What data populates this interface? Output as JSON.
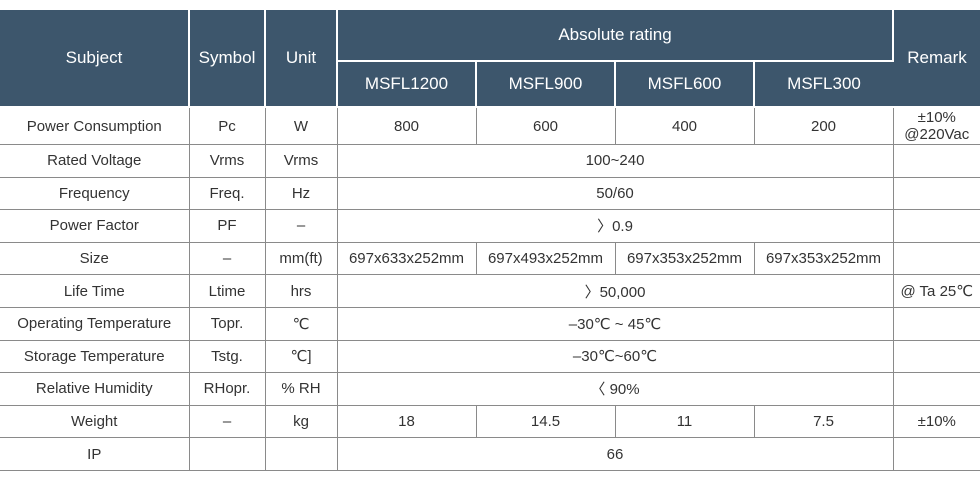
{
  "headers": {
    "subject": "Subject",
    "symbol": "Symbol",
    "unit": "Unit",
    "absolute_rating": "Absolute rating",
    "remark": "Remark",
    "models": [
      "MSFL1200",
      "MSFL900",
      "MSFL600",
      "MSFL300"
    ]
  },
  "rows": {
    "power_consumption": {
      "subject": "Power Consumption",
      "symbol": "Pc",
      "unit": "W",
      "values": [
        "800",
        "600",
        "400",
        "200"
      ],
      "remark_line1": "±10%",
      "remark_line2": "@220Vac"
    },
    "rated_voltage": {
      "subject": "Rated Voltage",
      "symbol": "Vrms",
      "unit": "Vrms",
      "value": "100~240",
      "remark": ""
    },
    "frequency": {
      "subject": "Frequency",
      "symbol": "Freq.",
      "unit": "Hz",
      "value": "50/60",
      "remark": ""
    },
    "power_factor": {
      "subject": "Power Factor",
      "symbol": "PF",
      "unit": "–",
      "value": "〉0.9",
      "remark": ""
    },
    "size": {
      "subject": "Size",
      "symbol": "–",
      "unit": "mm(ft)",
      "values": [
        "697x633x252mm",
        "697x493x252mm",
        "697x353x252mm",
        "697x353x252mm"
      ],
      "remark": ""
    },
    "life_time": {
      "subject": "Life Time",
      "symbol": "Ltime",
      "unit": "hrs",
      "value": "〉50,000",
      "remark": "@ Ta 25℃"
    },
    "operating_temperature": {
      "subject": "Operating Temperature",
      "symbol": "Topr.",
      "unit": "℃",
      "value": "–30℃ ~ 45℃",
      "remark": ""
    },
    "storage_temperature": {
      "subject": "Storage Temperature",
      "symbol": "Tstg.",
      "unit": "℃]",
      "value": "–30℃~60℃",
      "remark": ""
    },
    "relative_humidity": {
      "subject": "Relative Humidity",
      "symbol": "RHopr.",
      "unit": "% RH",
      "value": "〈 90%",
      "remark": ""
    },
    "weight": {
      "subject": "Weight",
      "symbol": "–",
      "unit": "kg",
      "values": [
        "18",
        "14.5",
        "11",
        "7.5"
      ],
      "remark": "±10%"
    },
    "ip": {
      "subject": "IP",
      "symbol": "",
      "unit": "",
      "value": "66",
      "remark": ""
    }
  }
}
